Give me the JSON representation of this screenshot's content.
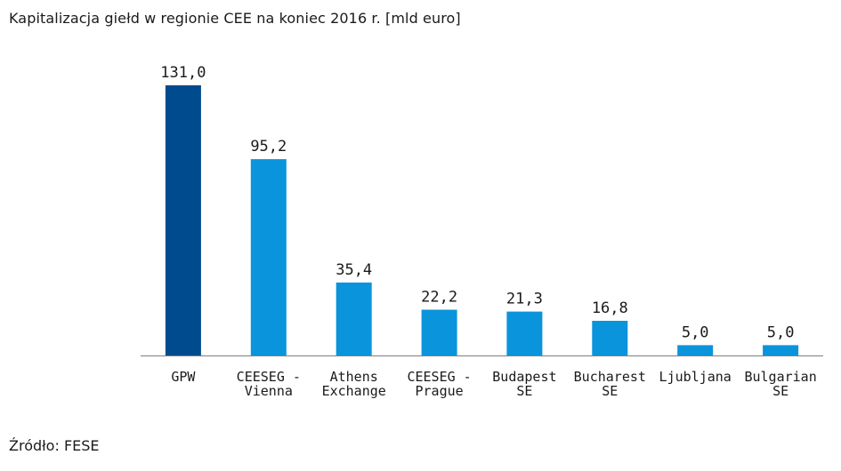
{
  "title": "Kapitalizacja giełd w regionie CEE na koniec 2016 r. [mld euro]",
  "source": "Źródło: FESE",
  "colors": {
    "highlight": "#004b8d",
    "bar": "#0a94db",
    "axis": "#7f7f7f",
    "text": "#1a1a1a"
  },
  "chart_data": {
    "type": "bar",
    "title": "Kapitalizacja giełd w regionie CEE na koniec 2016 r. [mld euro]",
    "categories": [
      [
        "GPW"
      ],
      [
        "CEESEG -",
        "Vienna"
      ],
      [
        "Athens",
        "Exchange"
      ],
      [
        "CEESEG -",
        "Prague"
      ],
      [
        "Budapest",
        "SE"
      ],
      [
        "Bucharest",
        "SE"
      ],
      [
        "Ljubljana"
      ],
      [
        "Bulgarian",
        "SE"
      ]
    ],
    "values": [
      131.0,
      95.2,
      35.4,
      22.2,
      21.3,
      16.8,
      5.0,
      5.0
    ],
    "data_labels": [
      "131,0",
      "95,2",
      "35,4",
      "22,2",
      "21,3",
      "16,8",
      "5,0",
      "5,0"
    ],
    "highlighted_index": 0,
    "ylim": [
      0,
      131
    ],
    "grid": false,
    "legend": "none",
    "xlabel": "",
    "ylabel": ""
  }
}
